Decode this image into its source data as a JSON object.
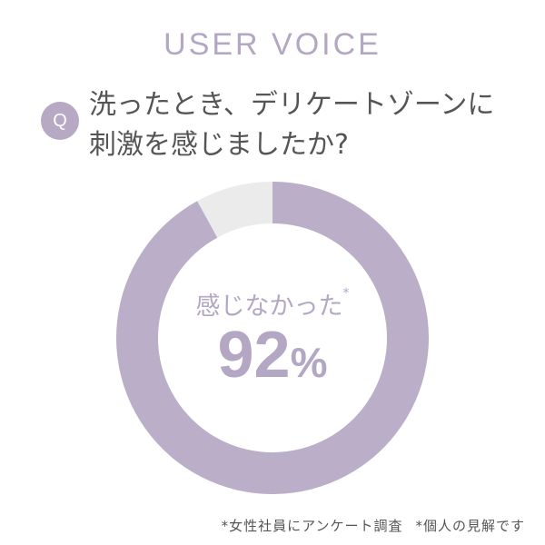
{
  "header": {
    "title": "USER VOICE"
  },
  "question": {
    "badge": "Q",
    "line1": "洗ったとき、デリケートゾーンに",
    "line2": "刺激を感じましたか?"
  },
  "chart_data": {
    "type": "pie",
    "donut": true,
    "slices": [
      {
        "name": "感じなかった",
        "value": 92,
        "color": "#bbaec8"
      },
      {
        "value": 8,
        "color": "#ebebeb"
      }
    ],
    "center_label": "感じなかった",
    "center_label_mark": "*",
    "center_value": "92",
    "center_unit": "%"
  },
  "footnotes": [
    "*女性社員にアンケート調査",
    "*個人の見解です"
  ]
}
